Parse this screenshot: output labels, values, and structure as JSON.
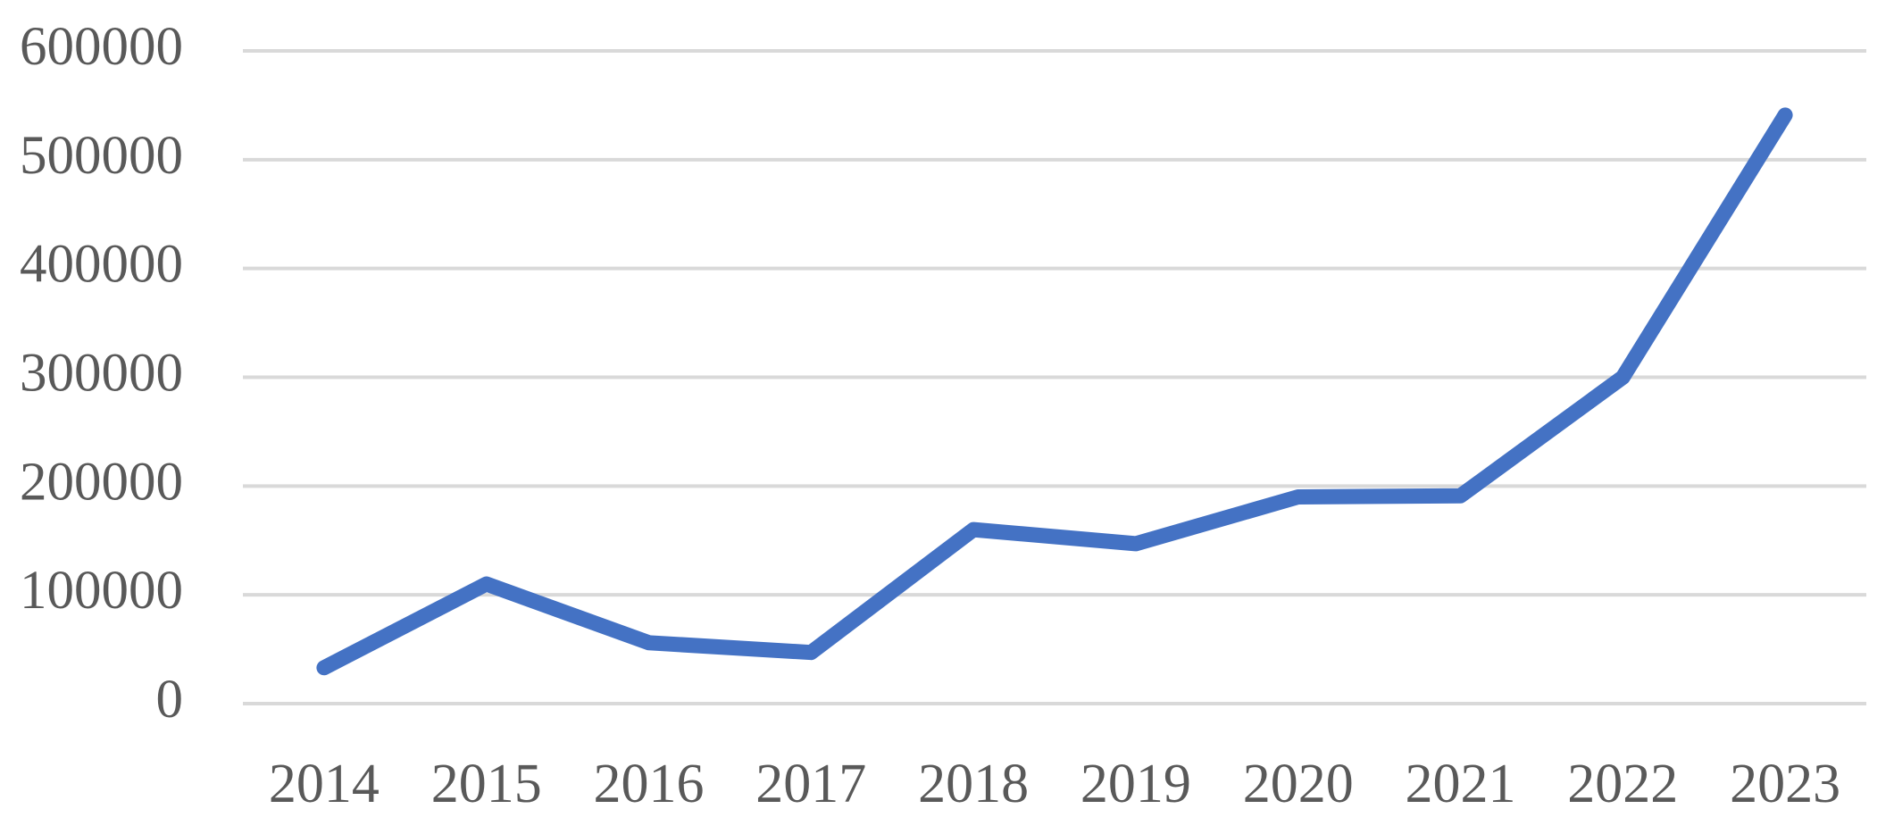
{
  "chart_data": {
    "type": "line",
    "title": "",
    "xlabel": "",
    "ylabel": "",
    "categories": [
      "2014",
      "2015",
      "2016",
      "2017",
      "2018",
      "2019",
      "2020",
      "2021",
      "2022",
      "2023"
    ],
    "series": [
      {
        "name": "series-1",
        "color": "#4472C4",
        "values": [
          33000,
          110000,
          56000,
          47000,
          160000,
          147000,
          190000,
          191000,
          300000,
          541000
        ]
      }
    ],
    "ylim": [
      0,
      600000
    ],
    "y_ticks": [
      0,
      100000,
      200000,
      300000,
      400000,
      500000,
      600000
    ],
    "y_tick_labels": [
      "0",
      "100000",
      "200000",
      "300000",
      "400000",
      "500000",
      "600000"
    ],
    "grid": true,
    "legend_position": "none",
    "markers": false,
    "colors": {
      "line": "#4472C4",
      "gridline": "#D9D9D9",
      "tick_label": "#595959",
      "background": "#FFFFFF"
    }
  }
}
